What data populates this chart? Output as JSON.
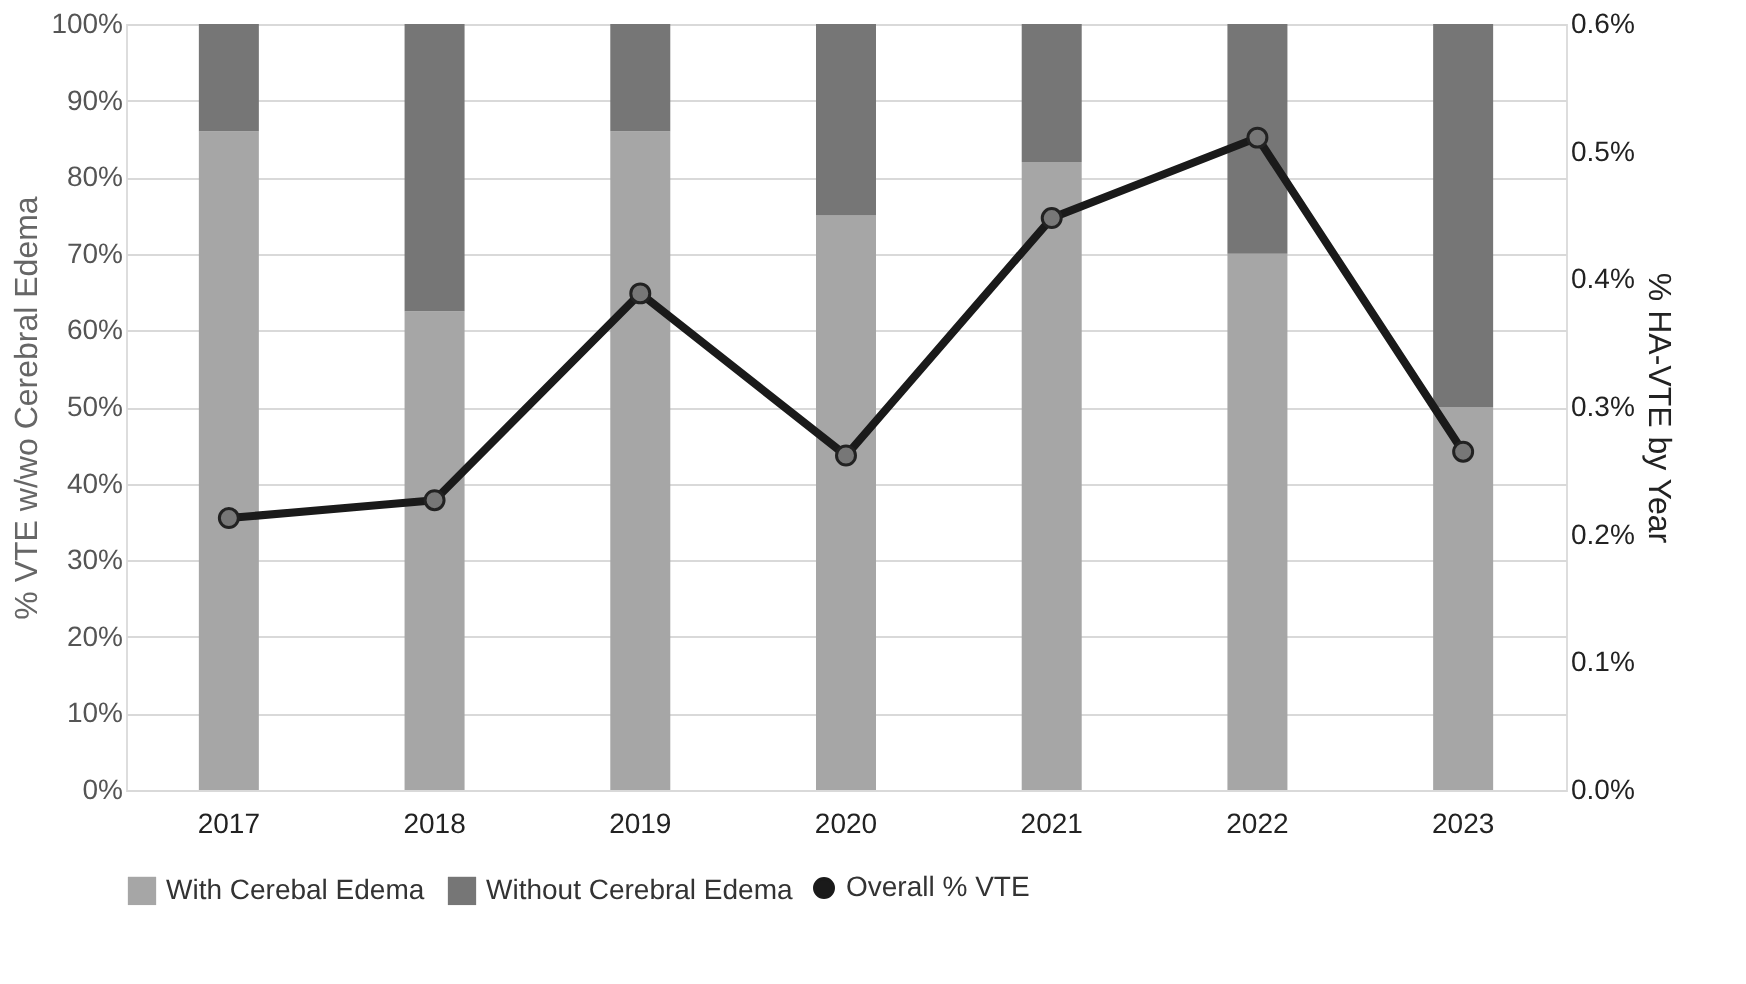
{
  "chart_data": {
    "type": "bar",
    "stacked": true,
    "categories": [
      "2017",
      "2018",
      "2019",
      "2020",
      "2021",
      "2022",
      "2023"
    ],
    "series": [
      {
        "name": "With Cerebal Edema",
        "color": "#a6a6a6",
        "values": [
          86,
          62.5,
          86,
          75,
          82,
          70,
          50
        ]
      },
      {
        "name": "Without Cerebral Edema",
        "color": "#767676",
        "values": [
          14,
          37.5,
          14,
          25,
          18,
          30,
          50
        ]
      },
      {
        "name": "Overall % VTE",
        "type": "line",
        "axis": "y2",
        "color": "#1a1a1a",
        "marker": "circle",
        "values": [
          0.213,
          0.227,
          0.389,
          0.262,
          0.448,
          0.511,
          0.265
        ]
      }
    ],
    "ylabel": "% VTE w/wo Cerebral Edema",
    "y2label": "% HA-VTE by Year",
    "ylim": [
      0,
      100
    ],
    "yticks": [
      {
        "value": 0,
        "label": "0%"
      },
      {
        "value": 10,
        "label": "10%"
      },
      {
        "value": 20,
        "label": "20%"
      },
      {
        "value": 30,
        "label": "30%"
      },
      {
        "value": 40,
        "label": "40%"
      },
      {
        "value": 50,
        "label": "50%"
      },
      {
        "value": 60,
        "label": "60%"
      },
      {
        "value": 70,
        "label": "70%"
      },
      {
        "value": 80,
        "label": "80%"
      },
      {
        "value": 90,
        "label": "90%"
      },
      {
        "value": 100,
        "label": "100%"
      }
    ],
    "y2lim": [
      0,
      0.6
    ],
    "y2ticks": [
      {
        "value": 0,
        "label": "0.0%"
      },
      {
        "value": 0.1,
        "label": "0.1%"
      },
      {
        "value": 0.2,
        "label": "0.2%"
      },
      {
        "value": 0.3,
        "label": "0.3%"
      },
      {
        "value": 0.4,
        "label": "0.4%"
      },
      {
        "value": 0.5,
        "label": "0.5%"
      },
      {
        "value": 0.6,
        "label": "0.6%"
      }
    ],
    "grid": "y",
    "legend": "bottom"
  }
}
